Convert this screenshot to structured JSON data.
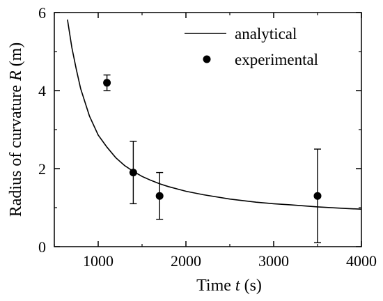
{
  "chart_data": {
    "type": "scatter",
    "xlabel": "Time t (s)",
    "ylabel": "Radius of curvature R (m)",
    "xlim": [
      500,
      4000
    ],
    "ylim": [
      0,
      6
    ],
    "xticks": [
      "1000",
      "2000",
      "3000",
      "4000"
    ],
    "yticks": [
      "0",
      "2",
      "4",
      "6"
    ],
    "grid": false,
    "legend_position": "top-right",
    "series": [
      {
        "name": "analytical",
        "kind": "line",
        "color": "#000000",
        "x": [
          650,
          700,
          750,
          800,
          900,
          1000,
          1100,
          1200,
          1300,
          1400,
          1500,
          1600,
          1700,
          1800,
          2000,
          2200,
          2500,
          2800,
          3000,
          3200,
          3500,
          3800,
          4000
        ],
        "y": [
          5.82,
          5.1,
          4.55,
          4.05,
          3.35,
          2.86,
          2.55,
          2.28,
          2.08,
          1.93,
          1.8,
          1.7,
          1.61,
          1.54,
          1.42,
          1.33,
          1.22,
          1.14,
          1.1,
          1.07,
          1.02,
          0.98,
          0.96
        ]
      },
      {
        "name": "experimental",
        "kind": "scatter",
        "color": "#000000",
        "points": [
          {
            "x": 1100,
            "y": 4.2,
            "yerr_low": 4.0,
            "yerr_high": 4.4
          },
          {
            "x": 1400,
            "y": 1.9,
            "yerr_low": 1.1,
            "yerr_high": 2.7
          },
          {
            "x": 1700,
            "y": 1.3,
            "yerr_low": 0.7,
            "yerr_high": 1.9
          },
          {
            "x": 3500,
            "y": 1.3,
            "yerr_low": 0.1,
            "yerr_high": 2.5
          }
        ]
      }
    ]
  },
  "labels": {
    "xlabel_prefix": "Time ",
    "xlabel_var": "t",
    "xlabel_suffix": " (s)",
    "ylabel_prefix": "Radius of curvature ",
    "ylabel_var": "R",
    "ylabel_suffix": " (m)"
  }
}
